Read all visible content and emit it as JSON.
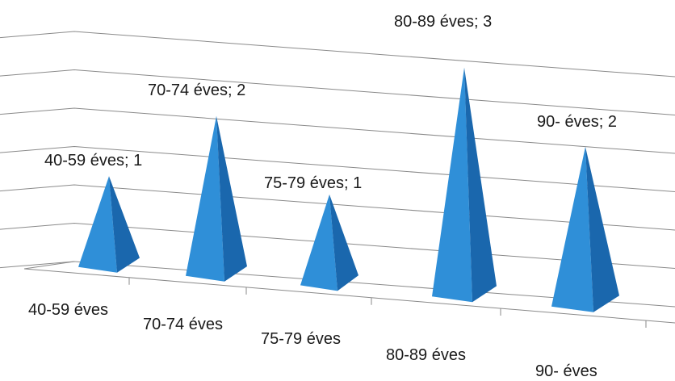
{
  "chart_data": {
    "type": "bar",
    "bar_shape": "3d-pyramid",
    "categories": [
      "40-59 éves",
      "70-74 éves",
      "75-79 éves",
      "80-89 éves",
      "90- éves"
    ],
    "values": [
      1,
      2,
      1,
      3,
      2
    ],
    "data_labels": [
      "40-59 éves; 1",
      "70-74 éves; 2",
      "75-79 éves; 1",
      "80-89 éves; 3",
      "90- éves; 2"
    ],
    "ylim": [
      0,
      3
    ],
    "grid": true,
    "legend": "none",
    "colors": {
      "bar_light": "#2f8fd8",
      "bar_dark": "#1a67ad",
      "grid": "#8a8a8a"
    }
  }
}
